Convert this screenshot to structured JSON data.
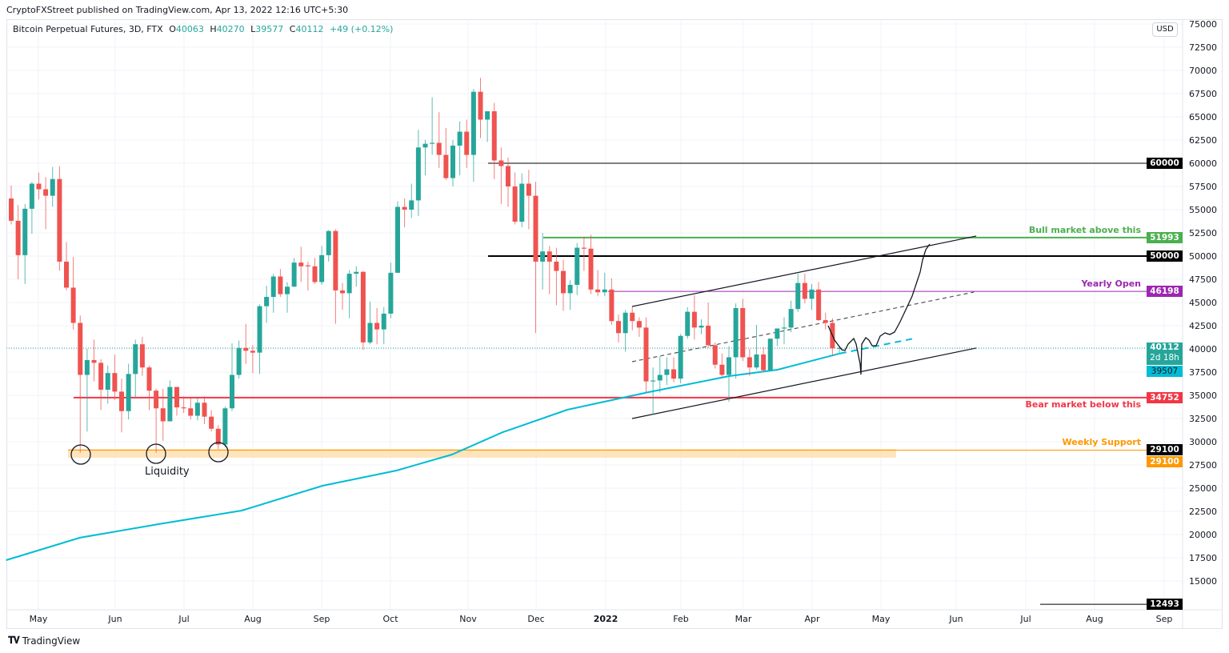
{
  "header": {
    "published": "CryptoFXStreet published on TradingView.com, Apr 13, 2022 12:16 UTC+5:30",
    "symbol": "Bitcoin Perpetual Futures, 3D, FTX",
    "o_label": "O",
    "o": "40063",
    "h_label": "H",
    "h": "40270",
    "l_label": "L",
    "l": "39577",
    "c_label": "C",
    "c": "40112",
    "change": "+49 (+0.12%)"
  },
  "currency_button": "USD",
  "branding": {
    "logo_mark": "TV",
    "name": "TradingView"
  },
  "colors": {
    "up": "#26a69a",
    "down": "#ef5350",
    "ma": "#00bcd4",
    "bull": "#4caf50",
    "yearly": "#9c27b0",
    "bear": "#f23645",
    "support": "#ff9800",
    "level": "#000000"
  },
  "chart_data": {
    "type": "candlestick",
    "title": "Bitcoin Perpetual Futures, 3D, FTX",
    "ylim": [
      11500,
      76000
    ],
    "grid": true,
    "y_ticks": [
      "75000",
      "72500",
      "70000",
      "67500",
      "65000",
      "62500",
      "60000",
      "57500",
      "55000",
      "52500",
      "50000",
      "47500",
      "45000",
      "42500",
      "40000",
      "37500",
      "35000",
      "32500",
      "30000",
      "27500",
      "25000",
      "22500",
      "20000",
      "17500",
      "15000"
    ],
    "x_ticks": [
      "May",
      "Jun",
      "Jul",
      "Aug",
      "Sep",
      "Oct",
      "Nov",
      "Dec",
      "2022",
      "Feb",
      "Mar",
      "Apr",
      "May",
      "Jun",
      "Jul",
      "Aug",
      "Sep"
    ],
    "candles_ohlc": [
      [
        56200,
        57600,
        53400,
        53800
      ],
      [
        53800,
        55500,
        47500,
        50100
      ],
      [
        50100,
        55600,
        47000,
        55100
      ],
      [
        55100,
        58000,
        52400,
        57800
      ],
      [
        57800,
        59000,
        56100,
        57200
      ],
      [
        57200,
        58500,
        52900,
        56500
      ],
      [
        56500,
        59600,
        55300,
        58300
      ],
      [
        58300,
        59700,
        48400,
        49400
      ],
      [
        49400,
        51500,
        46300,
        46600
      ],
      [
        46600,
        49900,
        42100,
        42800
      ],
      [
        42800,
        43600,
        28800,
        37200
      ],
      [
        37200,
        40000,
        31100,
        38800
      ],
      [
        38800,
        41000,
        36500,
        38500
      ],
      [
        38500,
        38900,
        33400,
        35600
      ],
      [
        35600,
        38200,
        34100,
        37400
      ],
      [
        37400,
        39400,
        34500,
        35400
      ],
      [
        35400,
        36800,
        31000,
        33300
      ],
      [
        33300,
        38400,
        32400,
        37300
      ],
      [
        37300,
        41000,
        34700,
        40500
      ],
      [
        40500,
        41300,
        37100,
        38000
      ],
      [
        38000,
        38200,
        33400,
        35500
      ],
      [
        35500,
        35700,
        28800,
        33600
      ],
      [
        33600,
        35700,
        30100,
        32200
      ],
      [
        32200,
        36600,
        32200,
        35900
      ],
      [
        35900,
        35900,
        32800,
        33700
      ],
      [
        33700,
        34900,
        33100,
        33600
      ],
      [
        33600,
        34700,
        32400,
        32800
      ],
      [
        32800,
        34700,
        32300,
        34200
      ],
      [
        34200,
        34900,
        31900,
        32700
      ],
      [
        32700,
        33400,
        31100,
        31400
      ],
      [
        31400,
        31800,
        29200,
        29700
      ],
      [
        29700,
        33800,
        29400,
        33600
      ],
      [
        33600,
        40600,
        33300,
        37200
      ],
      [
        37200,
        40900,
        36800,
        40100
      ],
      [
        40100,
        42700,
        38400,
        39800
      ],
      [
        39800,
        40400,
        37400,
        39600
      ],
      [
        39600,
        44800,
        37300,
        44600
      ],
      [
        44600,
        46800,
        42800,
        45600
      ],
      [
        45600,
        48100,
        43900,
        47800
      ],
      [
        47800,
        48600,
        45600,
        45900
      ],
      [
        45900,
        47200,
        43900,
        46700
      ],
      [
        46700,
        49800,
        46700,
        49300
      ],
      [
        49300,
        51000,
        47200,
        48900
      ],
      [
        49000,
        49400,
        46300,
        48900
      ],
      [
        48900,
        49800,
        47000,
        47200
      ],
      [
        47200,
        51100,
        46900,
        50100
      ],
      [
        50100,
        52800,
        49400,
        52700
      ],
      [
        52700,
        52900,
        42700,
        46300
      ],
      [
        46300,
        47100,
        44200,
        46000
      ],
      [
        46000,
        48500,
        43300,
        48100
      ],
      [
        48100,
        48900,
        46700,
        48300
      ],
      [
        48300,
        48400,
        39900,
        40700
      ],
      [
        40700,
        45100,
        40500,
        42800
      ],
      [
        42800,
        44400,
        40500,
        42100
      ],
      [
        42100,
        44500,
        40500,
        43800
      ],
      [
        43800,
        49300,
        43300,
        48200
      ],
      [
        48200,
        55900,
        48200,
        55300
      ],
      [
        55300,
        56200,
        53100,
        55000
      ],
      [
        55000,
        57800,
        54100,
        56000
      ],
      [
        56000,
        63600,
        54300,
        61700
      ],
      [
        61700,
        62500,
        58700,
        62100
      ],
      [
        62100,
        67100,
        60900,
        62200
      ],
      [
        62200,
        65500,
        59500,
        60900
      ],
      [
        60900,
        63800,
        58200,
        58400
      ],
      [
        58400,
        62500,
        57500,
        61900
      ],
      [
        61900,
        64500,
        58700,
        63400
      ],
      [
        63400,
        64700,
        59500,
        60900
      ],
      [
        60900,
        68000,
        58000,
        67700
      ],
      [
        67700,
        69200,
        62700,
        64700
      ],
      [
        64700,
        65600,
        62300,
        65600
      ],
      [
        65600,
        66500,
        58300,
        60300
      ],
      [
        60300,
        61700,
        55600,
        59700
      ],
      [
        59700,
        60600,
        55300,
        57500
      ],
      [
        57500,
        59000,
        53400,
        53700
      ],
      [
        53700,
        58900,
        53100,
        57800
      ],
      [
        57800,
        59300,
        52900,
        56500
      ],
      [
        56500,
        58000,
        41700,
        49400
      ],
      [
        49400,
        52500,
        46400,
        50500
      ],
      [
        50500,
        51100,
        45900,
        49400
      ],
      [
        49400,
        50900,
        44700,
        48400
      ],
      [
        48400,
        49600,
        44100,
        46000
      ],
      [
        46000,
        47400,
        44200,
        46900
      ],
      [
        46900,
        51400,
        45800,
        50900
      ],
      [
        50900,
        52100,
        48400,
        50800
      ],
      [
        50800,
        52300,
        45900,
        46400
      ],
      [
        46400,
        48500,
        45700,
        46100
      ],
      [
        46100,
        48200,
        45700,
        46400
      ],
      [
        46400,
        47600,
        42600,
        43000
      ],
      [
        43000,
        43700,
        40700,
        41700
      ],
      [
        41700,
        44200,
        39700,
        43900
      ],
      [
        43900,
        44500,
        42000,
        43000
      ],
      [
        43000,
        43400,
        41300,
        42300
      ],
      [
        42300,
        43400,
        35300,
        36500
      ],
      [
        36500,
        38000,
        32900,
        36600
      ],
      [
        36600,
        39200,
        35300,
        37200
      ],
      [
        37200,
        39100,
        36100,
        37800
      ],
      [
        37800,
        39100,
        36400,
        36800
      ],
      [
        36800,
        41600,
        36300,
        41400
      ],
      [
        41400,
        44500,
        41100,
        44000
      ],
      [
        44000,
        45800,
        41000,
        42300
      ],
      [
        42300,
        43200,
        41600,
        42500
      ],
      [
        42500,
        45000,
        40100,
        40400
      ],
      [
        40400,
        40700,
        37900,
        38300
      ],
      [
        38300,
        39500,
        37000,
        37200
      ],
      [
        37200,
        40300,
        34300,
        39100
      ],
      [
        39100,
        44900,
        36800,
        44400
      ],
      [
        44400,
        45400,
        38700,
        39100
      ],
      [
        39100,
        40000,
        37100,
        38000
      ],
      [
        38000,
        42600,
        37800,
        39400
      ],
      [
        39400,
        40200,
        37600,
        37700
      ],
      [
        37700,
        41100,
        37700,
        41100
      ],
      [
        41100,
        42200,
        40300,
        42200
      ],
      [
        42200,
        43400,
        40500,
        42300
      ],
      [
        42300,
        45200,
        41800,
        44300
      ],
      [
        44300,
        48100,
        44000,
        47100
      ],
      [
        47100,
        48100,
        44900,
        45400
      ],
      [
        45400,
        47000,
        44200,
        46400
      ],
      [
        46400,
        47200,
        43000,
        43100
      ],
      [
        43100,
        43900,
        42100,
        42800
      ],
      [
        42800,
        43300,
        39200,
        40063
      ],
      [
        40063,
        40270,
        39577,
        40112
      ]
    ],
    "moving_average": {
      "current": "39507",
      "points": [
        [
          "2021-04-17",
          17240
        ],
        [
          "2021-05-19",
          19660
        ],
        [
          "2021-06-22",
          21120
        ],
        [
          "2021-07-28",
          22590
        ],
        [
          "2021-09-01",
          25260
        ],
        [
          "2021-10-03",
          26900
        ],
        [
          "2021-10-27",
          28620
        ],
        [
          "2021-11-18",
          31030
        ],
        [
          "2021-12-16",
          33450
        ],
        [
          "2022-01-20",
          35340
        ],
        [
          "2022-02-24",
          37070
        ],
        [
          "2022-03-17",
          37760
        ],
        [
          "2022-04-13",
          39507
        ]
      ],
      "projection": [
        [
          "2022-04-13",
          39507
        ],
        [
          "2022-05-15",
          41120
        ]
      ]
    },
    "levels": [
      {
        "price": 60000,
        "tag": "60000",
        "color": "#000000",
        "label": "",
        "from": "2021-11-12"
      },
      {
        "price": 51993,
        "tag": "51993",
        "color": "#4caf50",
        "label": "Bull market above this",
        "from": "2021-12-06"
      },
      {
        "price": 50000,
        "tag": "50000",
        "color": "#000000",
        "label": "",
        "from": "2021-11-12"
      },
      {
        "price": 46198,
        "tag": "46198",
        "color": "#9c27b0",
        "label": "Yearly Open",
        "from": "2022-01-02"
      },
      {
        "price": 34752,
        "tag": "34752",
        "color": "#f23645",
        "label": "Bear market below this",
        "from": "2021-05-16"
      },
      {
        "price": 29100,
        "tag": "29100",
        "color": "#ff9800",
        "label": "Weekly Support",
        "from": "2021-05-13"
      },
      {
        "price": 12493,
        "tag": "12493",
        "color": "#000000",
        "label": "",
        "from": "2022-06-38"
      }
    ],
    "current_price": {
      "price": "40112",
      "countdown": "2d 18h"
    },
    "support_zone": {
      "label": "Liquidity",
      "top": 29400,
      "bottom": 28400
    },
    "channel": {
      "upper": [
        [
          "2022-01-13",
          44570
        ],
        [
          "2022-06-11",
          52160
        ]
      ],
      "middle": [
        [
          "2022-01-13",
          38620
        ],
        [
          "2022-06-10",
          46120
        ]
      ],
      "lower": [
        [
          "2022-01-13",
          32500
        ],
        [
          "2022-06-11",
          40090
        ]
      ]
    }
  }
}
